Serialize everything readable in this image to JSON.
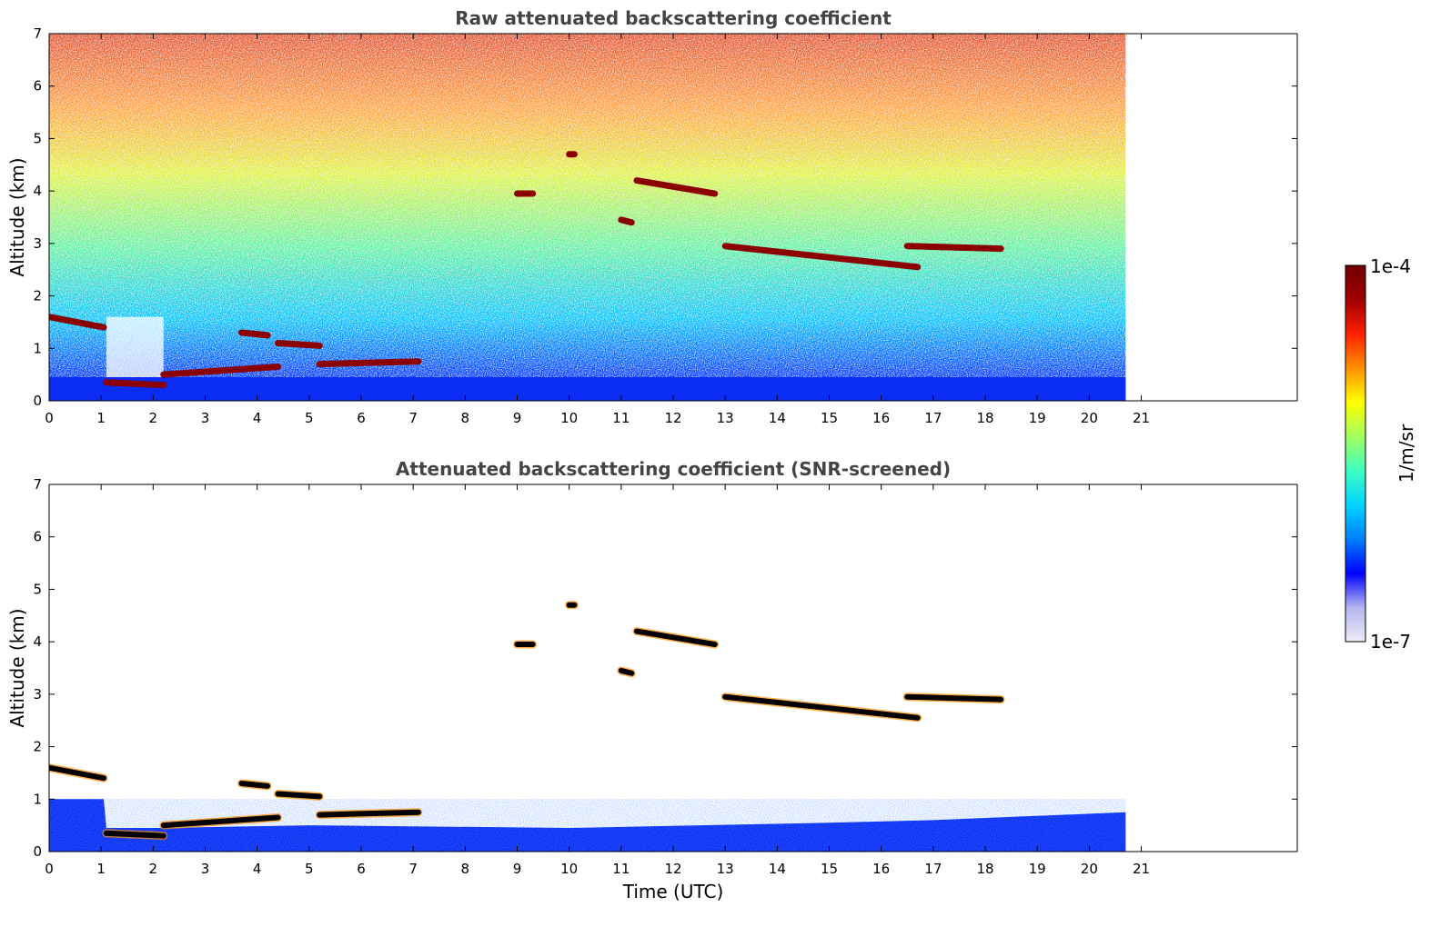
{
  "figure": {
    "colorbar": {
      "label": "1/m/sr",
      "max_label": "1e-4",
      "min_label": "1e-7",
      "scale": "log",
      "range": [
        1e-07,
        0.0001
      ],
      "colormap": [
        "#ececf8",
        "#b4b4ee",
        "#0000ff",
        "#0080ff",
        "#00d4ff",
        "#40ffc0",
        "#a0ff60",
        "#ffff00",
        "#ff9000",
        "#ff2000",
        "#a00000",
        "#700000"
      ]
    }
  },
  "chart_data": [
    {
      "type": "heatmap",
      "title": "Raw attenuated backscattering coefficient",
      "xlabel": "",
      "ylabel": "Altitude (km)",
      "xlim": [
        0,
        24
      ],
      "ylim": [
        0,
        7
      ],
      "x_ticks": [
        "0",
        "1",
        "2",
        "3",
        "4",
        "5",
        "6",
        "7",
        "8",
        "9",
        "10",
        "11",
        "12",
        "13",
        "14",
        "15",
        "16",
        "17",
        "18",
        "19",
        "20",
        "21"
      ],
      "y_ticks": [
        "0",
        "1",
        "2",
        "3",
        "4",
        "5",
        "6",
        "7"
      ],
      "data_end_time": 20.7,
      "cloud_layers": [
        {
          "x": [
            0,
            1.05
          ],
          "altitude": [
            1.6,
            1.4
          ]
        },
        {
          "x": [
            1.1,
            2.2
          ],
          "altitude": [
            0.35,
            0.3
          ]
        },
        {
          "x": [
            2.2,
            4.4
          ],
          "altitude": [
            0.5,
            0.65
          ]
        },
        {
          "x": [
            3.7,
            4.2
          ],
          "altitude": [
            1.3,
            1.25
          ]
        },
        {
          "x": [
            4.4,
            5.2
          ],
          "altitude": [
            1.1,
            1.05
          ]
        },
        {
          "x": [
            5.2,
            7.1
          ],
          "altitude": [
            0.7,
            0.75
          ]
        },
        {
          "x": [
            9.0,
            9.3
          ],
          "altitude": [
            3.95,
            3.95
          ]
        },
        {
          "x": [
            10.0,
            10.1
          ],
          "altitude": [
            4.7,
            4.7
          ]
        },
        {
          "x": [
            11.0,
            11.2
          ],
          "altitude": [
            3.45,
            3.4
          ]
        },
        {
          "x": [
            11.3,
            12.8
          ],
          "altitude": [
            4.2,
            3.95
          ]
        },
        {
          "x": [
            13.0,
            16.7
          ],
          "altitude": [
            2.95,
            2.55
          ]
        },
        {
          "x": [
            16.5,
            18.3
          ],
          "altitude": [
            2.95,
            2.9
          ]
        }
      ]
    },
    {
      "type": "heatmap",
      "title": "Attenuated backscattering coefficient (SNR-screened)",
      "xlabel": "Time (UTC)",
      "ylabel": "Altitude (km)",
      "xlim": [
        0,
        24
      ],
      "ylim": [
        0,
        7
      ],
      "x_ticks": [
        "0",
        "1",
        "2",
        "3",
        "4",
        "5",
        "6",
        "7",
        "8",
        "9",
        "10",
        "11",
        "12",
        "13",
        "14",
        "15",
        "16",
        "17",
        "18",
        "19",
        "20",
        "21"
      ],
      "y_ticks": [
        "0",
        "1",
        "2",
        "3",
        "4",
        "5",
        "6",
        "7"
      ],
      "data_end_time": 20.7
    }
  ]
}
